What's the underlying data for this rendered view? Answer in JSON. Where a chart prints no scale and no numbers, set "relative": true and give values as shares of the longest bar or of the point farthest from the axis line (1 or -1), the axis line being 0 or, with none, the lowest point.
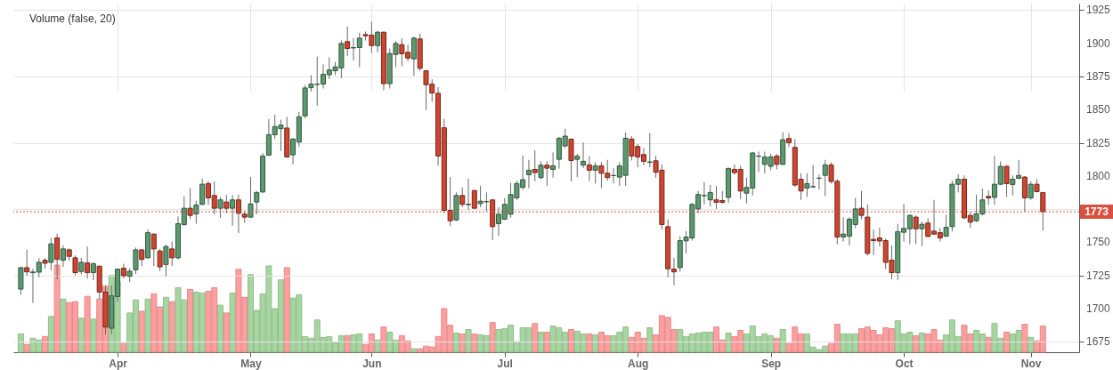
{
  "chart_data": [
    {
      "type": "candlestick",
      "tick_labels": "y",
      "categories": [
        null,
        null,
        null,
        null,
        null,
        null,
        null,
        null,
        null,
        null,
        null,
        null,
        null,
        null,
        null,
        null,
        null,
        null,
        null,
        null,
        null,
        null,
        null,
        null,
        null,
        null,
        null,
        null,
        null,
        null,
        null,
        null,
        null,
        null,
        null,
        null,
        null,
        null,
        null,
        null,
        null,
        null,
        null,
        null,
        null,
        null,
        null,
        null,
        null,
        null,
        null,
        null,
        null,
        null,
        null,
        null,
        null,
        null,
        null,
        null,
        null,
        null,
        null,
        null,
        null,
        null,
        null,
        null,
        null,
        null,
        null,
        null,
        null,
        null,
        null,
        null,
        null,
        null,
        null,
        null,
        null,
        null,
        null,
        null,
        null,
        null,
        null,
        null,
        null,
        null,
        null,
        null,
        null,
        null,
        null,
        null,
        null,
        null,
        null,
        null,
        null,
        null,
        null,
        null,
        null,
        null,
        null,
        null,
        null,
        null,
        null,
        null,
        null,
        null,
        null,
        null,
        null,
        null,
        null,
        null,
        null,
        null,
        null,
        null,
        null,
        null,
        null,
        null,
        null,
        null,
        null,
        null,
        null,
        null,
        null,
        null,
        null,
        null,
        null,
        null,
        null,
        null,
        null,
        null,
        null,
        null,
        null,
        null,
        null,
        null,
        null,
        null,
        null,
        null,
        null,
        null,
        null,
        null,
        null,
        null,
        null,
        null,
        null,
        null,
        null,
        null,
        null,
        null,
        null,
        null
      ],
      "ohlc": [
        [
          1714.6,
          1731,
          1710.2,
          1730.8
        ],
        [
          1730.8,
          1744.2,
          1724.7,
          1727.6
        ],
        [
          1727,
          1730,
          1704.1,
          1727.5
        ],
        [
          1727.4,
          1738,
          1723.6,
          1734.8
        ],
        [
          1736.4,
          1738,
          1730,
          1734.1
        ],
        [
          1734.8,
          1753.2,
          1728.8,
          1748.7
        ],
        [
          1753.2,
          1756.5,
          1722,
          1737
        ],
        [
          1736.4,
          1747.6,
          1731.4,
          1744.9
        ],
        [
          1744.2,
          1745.3,
          1735.9,
          1739.3
        ],
        [
          1738.2,
          1740,
          1725.2,
          1727
        ],
        [
          1727.9,
          1738.2,
          1725.9,
          1734.8
        ],
        [
          1734.4,
          1746.7,
          1722.5,
          1727
        ],
        [
          1727,
          1734.8,
          1721.4,
          1733.7
        ],
        [
          1731.9,
          1732,
          1707.3,
          1712.4
        ],
        [
          1712.4,
          1716.9,
          1680.4,
          1686
        ],
        [
          1685.1,
          1717.5,
          1680.4,
          1709.5
        ],
        [
          1709,
          1730,
          1705,
          1729.7
        ],
        [
          1730.3,
          1733.7,
          1722.5,
          1724.7
        ],
        [
          1724.3,
          1730.3,
          1719.8,
          1728.1
        ],
        [
          1729.2,
          1746,
          1725.9,
          1744.2
        ],
        [
          1744.2,
          1744.5,
          1731.9,
          1737
        ],
        [
          1738.2,
          1759.5,
          1737.7,
          1757.2
        ],
        [
          1756.1,
          1756.5,
          1731.9,
          1744.9
        ],
        [
          1743.3,
          1744.9,
          1728.1,
          1731.4
        ],
        [
          1733.2,
          1748.3,
          1724.3,
          1746.7
        ],
        [
          1744.9,
          1750.5,
          1732.1,
          1738.2
        ],
        [
          1738.2,
          1769.5,
          1737,
          1764
        ],
        [
          1763.2,
          1784.5,
          1762.8,
          1775.6
        ],
        [
          1775.6,
          1790.8,
          1767.7,
          1770.2
        ],
        [
          1771.3,
          1781.2,
          1763.9,
          1778
        ],
        [
          1778.5,
          1797.9,
          1778,
          1793.7
        ],
        [
          1794.2,
          1795.9,
          1778,
          1783.4
        ],
        [
          1785.2,
          1795.9,
          1770.7,
          1775.6
        ],
        [
          1775.6,
          1784.1,
          1768.4,
          1781.9
        ],
        [
          1780.3,
          1785.7,
          1771.8,
          1775.6
        ],
        [
          1775.6,
          1785.7,
          1762.4,
          1781.9
        ],
        [
          1781.9,
          1785.9,
          1756.8,
          1771.8
        ],
        [
          1771.1,
          1773.6,
          1764.6,
          1768.9
        ],
        [
          1768.9,
          1799.1,
          1768.4,
          1778.9
        ],
        [
          1780.3,
          1788.6,
          1771.1,
          1787.5
        ],
        [
          1787.9,
          1817.2,
          1787,
          1815
        ],
        [
          1815.7,
          1843,
          1815,
          1831.1
        ],
        [
          1831.1,
          1846.1,
          1827.8,
          1837.2
        ],
        [
          1835.6,
          1842.3,
          1818.8,
          1838.3
        ],
        [
          1836.1,
          1844.6,
          1813.7,
          1814.3
        ],
        [
          1815.9,
          1828.5,
          1808.7,
          1827.8
        ],
        [
          1825.5,
          1848.4,
          1821.8,
          1844.6
        ],
        [
          1845.3,
          1868.5,
          1843.5,
          1866.3
        ],
        [
          1866.5,
          1875.9,
          1863.6,
          1869.2
        ],
        [
          1869,
          1890,
          1852.9,
          1869.2
        ],
        [
          1869.2,
          1884.2,
          1865.9,
          1876.6
        ],
        [
          1876.3,
          1889.4,
          1873,
          1879.9
        ],
        [
          1879.3,
          1886,
          1875.9,
          1882.2
        ],
        [
          1881.5,
          1902.1,
          1873.7,
          1899.9
        ],
        [
          1901.3,
          1912.5,
          1890.5,
          1896.1
        ],
        [
          1896.5,
          1903.9,
          1887.1,
          1896.8
        ],
        [
          1896.8,
          1908,
          1882,
          1903.9
        ],
        [
          1906.6,
          1908.9,
          1902.1,
          1905.7
        ],
        [
          1906.2,
          1916.3,
          1892.7,
          1898.3
        ],
        [
          1898.3,
          1909.5,
          1893.2,
          1908.4
        ],
        [
          1908.4,
          1908.9,
          1864.7,
          1869.6
        ],
        [
          1869.6,
          1896.1,
          1865.9,
          1892.3
        ],
        [
          1891.6,
          1901.7,
          1882,
          1899.9
        ],
        [
          1899,
          1903.9,
          1882.7,
          1892.1
        ],
        [
          1893.2,
          1899,
          1886.5,
          1888.9
        ],
        [
          1888.3,
          1905.1,
          1875.5,
          1903.9
        ],
        [
          1903.3,
          1907.3,
          1879.3,
          1881.1
        ],
        [
          1879.3,
          1879.4,
          1849.7,
          1868.8
        ],
        [
          1869.2,
          1873,
          1855.8,
          1862.5
        ],
        [
          1862.3,
          1867,
          1807.6,
          1815
        ],
        [
          1836.3,
          1843,
          1771.8,
          1774
        ],
        [
          1774,
          1799.1,
          1762.1,
          1766.2
        ],
        [
          1766.8,
          1787.5,
          1766,
          1785.2
        ],
        [
          1785.2,
          1791.3,
          1776.3,
          1778.5
        ],
        [
          1778.3,
          1797.9,
          1774.5,
          1778.6
        ],
        [
          1789,
          1789.2,
          1775.1,
          1775.6
        ],
        [
          1779.1,
          1792.4,
          1776.3,
          1780.9
        ],
        [
          1780.5,
          1787.5,
          1773.4,
          1780.7
        ],
        [
          1781.9,
          1782,
          1751.6,
          1761.7
        ],
        [
          1764,
          1776.3,
          1754.5,
          1771.1
        ],
        [
          1767.3,
          1783.4,
          1766.8,
          1778.5
        ],
        [
          1771.1,
          1794.8,
          1768.4,
          1785.9
        ],
        [
          1783.4,
          1796.4,
          1781.9,
          1794.2
        ],
        [
          1791.3,
          1815.4,
          1789.7,
          1797.2
        ],
        [
          1800.9,
          1812.1,
          1790.6,
          1804.3
        ],
        [
          1804.9,
          1819.3,
          1795.9,
          1802.5
        ],
        [
          1798.7,
          1811,
          1797.5,
          1808.1
        ],
        [
          1808.1,
          1811,
          1792.4,
          1805.8
        ],
        [
          1804.9,
          1817.7,
          1798.7,
          1807.6
        ],
        [
          1812.5,
          1829.3,
          1805.4,
          1828.4
        ],
        [
          1822.6,
          1835.6,
          1821,
          1830
        ],
        [
          1827.8,
          1828,
          1795.9,
          1811.6
        ],
        [
          1812.5,
          1816.6,
          1799,
          1814.8
        ],
        [
          1808.1,
          1825.3,
          1805.8,
          1811
        ],
        [
          1808.3,
          1814.8,
          1796,
          1804.3
        ],
        [
          1804.3,
          1810.3,
          1794.2,
          1807.6
        ],
        [
          1807.6,
          1810.3,
          1790.8,
          1802
        ],
        [
          1802,
          1812.1,
          1796.4,
          1798.7
        ],
        [
          1800.2,
          1805.8,
          1794.2,
          1800.3
        ],
        [
          1799.1,
          1810.3,
          1792.4,
          1807.6
        ],
        [
          1800.4,
          1832.7,
          1792.4,
          1828.4
        ],
        [
          1827.8,
          1830,
          1811.6,
          1815
        ],
        [
          1822.2,
          1824,
          1806.5,
          1814.3
        ],
        [
          1816.1,
          1821.1,
          1808.1,
          1811
        ],
        [
          1810.3,
          1832.3,
          1806.5,
          1810.5
        ],
        [
          1811.4,
          1815.4,
          1798.7,
          1802.7
        ],
        [
          1804.3,
          1808.7,
          1759.5,
          1763.3
        ],
        [
          1761.7,
          1767.3,
          1723.6,
          1729.9
        ],
        [
          1729.7,
          1738.2,
          1717.6,
          1727.6
        ],
        [
          1730.8,
          1754.5,
          1727.6,
          1751.2
        ],
        [
          1751,
          1758.3,
          1741.5,
          1753.9
        ],
        [
          1753.2,
          1779.6,
          1751.2,
          1778.5
        ],
        [
          1775.1,
          1788.6,
          1771.8,
          1785.9
        ],
        [
          1785.1,
          1795.3,
          1778.5,
          1785.2
        ],
        [
          1781.9,
          1793.1,
          1776.9,
          1787.5
        ],
        [
          1781.9,
          1792.4,
          1775.1,
          1780.1
        ],
        [
          1781.4,
          1788.6,
          1779,
          1780.1
        ],
        [
          1783.8,
          1806.3,
          1779.6,
          1805.6
        ],
        [
          1804.9,
          1808.7,
          1800.9,
          1802.5
        ],
        [
          1804.9,
          1807.6,
          1782.5,
          1788.6
        ],
        [
          1787,
          1798.7,
          1779.2,
          1791.3
        ],
        [
          1790.8,
          1818.1,
          1785.2,
          1817.3
        ],
        [
          1814.8,
          1818.3,
          1803.1,
          1815
        ],
        [
          1808.7,
          1818.3,
          1802,
          1814.3
        ],
        [
          1807.2,
          1816.6,
          1804.3,
          1814.3
        ],
        [
          1815,
          1816.6,
          1804.9,
          1808.7
        ],
        [
          1808.7,
          1832.9,
          1808,
          1827.3
        ],
        [
          1828.2,
          1832.3,
          1821.7,
          1825.1
        ],
        [
          1821.5,
          1827.8,
          1791.9,
          1793.1
        ],
        [
          1797.5,
          1802,
          1781.9,
          1788.6
        ],
        [
          1790.8,
          1802,
          1784.1,
          1794.2
        ],
        [
          1791.8,
          1808.1,
          1790.8,
          1791.9
        ],
        [
          1798.2,
          1800.9,
          1789.7,
          1798.3
        ],
        [
          1800.4,
          1812.1,
          1784.7,
          1808.3
        ],
        [
          1808.3,
          1810.3,
          1794.2,
          1795.8
        ],
        [
          1795.9,
          1797.5,
          1748.3,
          1753.9
        ],
        [
          1753.9,
          1768.9,
          1750.5,
          1756.1
        ],
        [
          1754.5,
          1768.9,
          1747.6,
          1767.3
        ],
        [
          1763.3,
          1783.4,
          1760.6,
          1775.1
        ],
        [
          1775.6,
          1788.6,
          1767.3,
          1770.2
        ],
        [
          1768.9,
          1778.5,
          1740,
          1741.5
        ],
        [
          1752.1,
          1759.5,
          1740.3,
          1751.2
        ],
        [
          1753.2,
          1761,
          1746.7,
          1750.9
        ],
        [
          1751.2,
          1752.8,
          1729.7,
          1734.8
        ],
        [
          1736.4,
          1747.6,
          1722,
          1727
        ],
        [
          1727,
          1763.9,
          1721.4,
          1757.9
        ],
        [
          1757.5,
          1778.9,
          1750.5,
          1760.4
        ],
        [
          1760.1,
          1770.7,
          1748.5,
          1770.2
        ],
        [
          1768.9,
          1770.2,
          1748.5,
          1760.1
        ],
        [
          1760.1,
          1765.5,
          1747.2,
          1763.5
        ],
        [
          1764.4,
          1768,
          1753.9,
          1754.3
        ],
        [
          1758.3,
          1781.9,
          1755.6,
          1756.1
        ],
        [
          1757.2,
          1760.6,
          1750.5,
          1753.2
        ],
        [
          1754.5,
          1770.7,
          1753.9,
          1761.2
        ],
        [
          1761.7,
          1796.4,
          1758.3,
          1793.7
        ],
        [
          1793.7,
          1801.3,
          1787.5,
          1797.5
        ],
        [
          1797.5,
          1800.4,
          1767.3,
          1768.4
        ],
        [
          1770.2,
          1772.7,
          1760.6,
          1765.1
        ],
        [
          1766.2,
          1785.9,
          1765.1,
          1771.3
        ],
        [
          1771.3,
          1790.4,
          1770,
          1781.9
        ],
        [
          1784.5,
          1788.9,
          1778,
          1783.4
        ],
        [
          1783.8,
          1815,
          1778.3,
          1793.7
        ],
        [
          1793.7,
          1811,
          1793,
          1807.2
        ],
        [
          1807.2,
          1808.1,
          1784.1,
          1794.2
        ],
        [
          1793.5,
          1800.4,
          1785.2,
          1797.5
        ],
        [
          1798.2,
          1812.1,
          1797.5,
          1800.4
        ],
        [
          1799.1,
          1799.8,
          1772.9,
          1783.4
        ],
        [
          1783.4,
          1795.9,
          1781.9,
          1793.7
        ],
        [
          1793.7,
          1797.5,
          1787.5,
          1788.1
        ],
        [
          1787.5,
          1787.5,
          1758.8,
          1773
        ]
      ],
      "colors": [
        "#5b9a6f",
        "#d0452f",
        "#5b9a6f",
        "#5b9a6f",
        "#d0452f",
        "#5b9a6f",
        "#d0452f",
        "#5b9a6f",
        "#d0452f",
        "#d0452f",
        "#5b9a6f",
        "#d0452f",
        "#5b9a6f",
        "#d0452f",
        "#d0452f",
        "#5b9a6f",
        "#5b9a6f",
        "#d0452f",
        "#5b9a6f",
        "#5b9a6f",
        "#d0452f",
        "#5b9a6f",
        "#d0452f",
        "#d0452f",
        "#5b9a6f",
        "#d0452f",
        "#5b9a6f",
        "#5b9a6f",
        "#d0452f",
        "#5b9a6f",
        "#5b9a6f",
        "#d0452f",
        "#d0452f",
        "#5b9a6f",
        "#d0452f",
        "#5b9a6f",
        "#d0452f",
        "#d0452f",
        "#5b9a6f",
        "#5b9a6f",
        "#5b9a6f",
        "#5b9a6f",
        "#5b9a6f",
        "#5b9a6f",
        "#d0452f",
        "#5b9a6f",
        "#5b9a6f",
        "#5b9a6f",
        "#5b9a6f",
        "#5b9a6f",
        "#5b9a6f",
        "#5b9a6f",
        "#5b9a6f",
        "#5b9a6f",
        "#d0452f",
        "#5b9a6f",
        "#5b9a6f",
        "#d0452f",
        "#d0452f",
        "#5b9a6f",
        "#d0452f",
        "#5b9a6f",
        "#5b9a6f",
        "#d0452f",
        "#d0452f",
        "#5b9a6f",
        "#d0452f",
        "#d0452f",
        "#d0452f",
        "#d0452f",
        "#d0452f",
        "#d0452f",
        "#5b9a6f",
        "#d0452f",
        "#5b9a6f",
        "#d0452f",
        "#5b9a6f",
        "#5b9a6f",
        "#d0452f",
        "#5b9a6f",
        "#5b9a6f",
        "#5b9a6f",
        "#5b9a6f",
        "#5b9a6f",
        "#5b9a6f",
        "#d0452f",
        "#5b9a6f",
        "#d0452f",
        "#5b9a6f",
        "#5b9a6f",
        "#5b9a6f",
        "#d0452f",
        "#5b9a6f",
        "#5b9a6f",
        "#d0452f",
        "#5b9a6f",
        "#d0452f",
        "#d0452f",
        "#5b9a6f",
        "#5b9a6f",
        "#5b9a6f",
        "#d0452f",
        "#d0452f",
        "#d0452f",
        "#5b9a6f",
        "#d0452f",
        "#d0452f",
        "#d0452f",
        "#d0452f",
        "#5b9a6f",
        "#5b9a6f",
        "#5b9a6f",
        "#5b9a6f",
        "#5b9a6f",
        "#5b9a6f",
        "#d0452f",
        "#d0452f",
        "#5b9a6f",
        "#d0452f",
        "#d0452f",
        "#5b9a6f",
        "#5b9a6f",
        "#5b9a6f",
        "#5b9a6f",
        "#5b9a6f",
        "#d0452f",
        "#5b9a6f",
        "#d0452f",
        "#d0452f",
        "#d0452f",
        "#5b9a6f",
        "#5b9a6f",
        "#5b9a6f",
        "#5b9a6f",
        "#d0452f",
        "#d0452f",
        "#5b9a6f",
        "#5b9a6f",
        "#5b9a6f",
        "#d0452f",
        "#d0452f",
        "#d0452f",
        "#d0452f",
        "#d0452f",
        "#d0452f",
        "#5b9a6f",
        "#5b9a6f",
        "#5b9a6f",
        "#d0452f",
        "#5b9a6f",
        "#d0452f",
        "#d0452f",
        "#d0452f",
        "#5b9a6f",
        "#5b9a6f",
        "#5b9a6f",
        "#d0452f",
        "#d0452f",
        "#5b9a6f",
        "#5b9a6f",
        "#d0452f",
        "#5b9a6f",
        "#5b9a6f",
        "#d0452f",
        "#5b9a6f",
        "#5b9a6f",
        "#d0452f",
        "#5b9a6f",
        "#d0452f",
        "#d0452f"
      ],
      "ylim": [
        1667,
        1930
      ],
      "yticks": [
        1675,
        1700,
        1725,
        1750,
        {
          "value": 1775,
          "label": null
        },
        1800,
        1825,
        1850,
        1875,
        1900,
        1925
      ],
      "grid": "y",
      "ref_lines": [
        {
          "axis": "y",
          "value": 1773,
          "label": "1773",
          "color": "#d9503f",
          "line_style": "dotted"
        }
      ]
    },
    {
      "type": "bar",
      "title": "Volume (false, 20)",
      "relative": true,
      "tick_labels": "x",
      "grid": "x",
      "categories": [
        null,
        null,
        null,
        null,
        null,
        null,
        null,
        null,
        null,
        null,
        null,
        null,
        null,
        null,
        null,
        null,
        "Apr",
        null,
        null,
        null,
        null,
        null,
        null,
        null,
        null,
        null,
        null,
        null,
        null,
        null,
        null,
        null,
        null,
        null,
        null,
        null,
        null,
        null,
        "May",
        null,
        null,
        null,
        null,
        null,
        null,
        null,
        null,
        null,
        null,
        null,
        null,
        null,
        null,
        null,
        null,
        null,
        null,
        null,
        "Jun",
        null,
        null,
        null,
        null,
        null,
        null,
        null,
        null,
        null,
        null,
        null,
        null,
        null,
        null,
        null,
        null,
        null,
        null,
        null,
        null,
        null,
        "Jul",
        null,
        null,
        null,
        null,
        null,
        null,
        null,
        null,
        null,
        null,
        null,
        null,
        null,
        null,
        null,
        null,
        null,
        null,
        null,
        null,
        null,
        "Aug",
        null,
        null,
        null,
        null,
        null,
        null,
        null,
        null,
        null,
        null,
        null,
        null,
        null,
        null,
        null,
        null,
        null,
        null,
        null,
        null,
        null,
        "Sep",
        null,
        null,
        null,
        null,
        null,
        null,
        null,
        null,
        null,
        null,
        null,
        null,
        null,
        null,
        null,
        null,
        null,
        null,
        null,
        null,
        null,
        "Oct",
        null,
        null,
        null,
        null,
        null,
        null,
        null,
        null,
        null,
        null,
        null,
        null,
        null,
        null,
        null,
        null,
        null,
        null,
        null,
        null,
        "Nov",
        null,
        null
      ],
      "values": [
        0.21,
        0.09,
        0.16,
        0.14,
        0.18,
        0.41,
        1,
        0.61,
        0.57,
        0.58,
        0.39,
        0.64,
        0.38,
        0.61,
        0.76,
        0.88,
        0.81,
        0.1,
        0.45,
        0.6,
        0.47,
        0.61,
        0.67,
        0.52,
        0.63,
        0.58,
        0.74,
        0.6,
        0.72,
        0.69,
        0.68,
        0.7,
        0.74,
        0.54,
        0.45,
        0.68,
        0.95,
        0.63,
        0.89,
        0.48,
        0.67,
        0.99,
        0.5,
        0.83,
        0.97,
        0.62,
        0.66,
        0.18,
        0.16,
        0.37,
        0.17,
        0.18,
        0.11,
        0.19,
        0.19,
        0.2,
        0.21,
        0.09,
        0.21,
        0.14,
        0.29,
        0.23,
        0.14,
        0.19,
        0.13,
        0.04,
        0.04,
        0.07,
        0.06,
        0.18,
        0.5,
        0.31,
        0.22,
        0.21,
        0.26,
        0.21,
        0.2,
        0.19,
        0.34,
        0.26,
        0.27,
        0.31,
        0.12,
        0.28,
        0.28,
        0.33,
        0.23,
        0.23,
        0.3,
        0.28,
        0.23,
        0.26,
        0.24,
        0.21,
        0.21,
        0.2,
        0.23,
        0.19,
        0.19,
        0.23,
        0.29,
        0.17,
        0.23,
        0.16,
        0.28,
        0.2,
        0.42,
        0.4,
        0.26,
        0.26,
        0.18,
        0.21,
        0.22,
        0.23,
        0.23,
        0.29,
        0.14,
        0.22,
        0.18,
        0.25,
        0.21,
        0.3,
        0.18,
        0.21,
        0.19,
        0.16,
        0.26,
        0.1,
        0.29,
        0.21,
        0.21,
        0.06,
        0.03,
        0.07,
        0.1,
        0.32,
        0.21,
        0.21,
        0.21,
        0.27,
        0.29,
        0.25,
        0.2,
        0.28,
        0.27,
        0.36,
        0.21,
        0.23,
        0.19,
        0.22,
        0.21,
        0.26,
        0.14,
        0.2,
        0.37,
        0.18,
        0.31,
        0.21,
        0.25,
        0.21,
        0.17,
        0.33,
        0.16,
        0.23,
        0.21,
        0.25,
        0.32,
        0.17,
        0.13,
        0.3
      ],
      "colors": [
        "#a6d6a0",
        "#ff9e9e",
        "#a6d6a0",
        "#a6d6a0",
        "#ff9e9e",
        "#a6d6a0",
        "#ff9e9e",
        "#a6d6a0",
        "#ff9e9e",
        "#ff9e9e",
        "#a6d6a0",
        "#ff9e9e",
        "#a6d6a0",
        "#ff9e9e",
        "#ff9e9e",
        "#a6d6a0",
        "#a6d6a0",
        "#ff9e9e",
        "#a6d6a0",
        "#a6d6a0",
        "#ff9e9e",
        "#a6d6a0",
        "#ff9e9e",
        "#ff9e9e",
        "#a6d6a0",
        "#ff9e9e",
        "#a6d6a0",
        "#a6d6a0",
        "#ff9e9e",
        "#a6d6a0",
        "#a6d6a0",
        "#ff9e9e",
        "#ff9e9e",
        "#a6d6a0",
        "#ff9e9e",
        "#a6d6a0",
        "#ff9e9e",
        "#ff9e9e",
        "#a6d6a0",
        "#a6d6a0",
        "#a6d6a0",
        "#a6d6a0",
        "#a6d6a0",
        "#a6d6a0",
        "#ff9e9e",
        "#a6d6a0",
        "#a6d6a0",
        "#a6d6a0",
        "#a6d6a0",
        "#a6d6a0",
        "#a6d6a0",
        "#a6d6a0",
        "#a6d6a0",
        "#a6d6a0",
        "#ff9e9e",
        "#a6d6a0",
        "#a6d6a0",
        "#ff9e9e",
        "#ff9e9e",
        "#a6d6a0",
        "#ff9e9e",
        "#a6d6a0",
        "#a6d6a0",
        "#ff9e9e",
        "#ff9e9e",
        "#a6d6a0",
        "#ff9e9e",
        "#ff9e9e",
        "#ff9e9e",
        "#ff9e9e",
        "#ff9e9e",
        "#ff9e9e",
        "#a6d6a0",
        "#ff9e9e",
        "#a6d6a0",
        "#ff9e9e",
        "#a6d6a0",
        "#a6d6a0",
        "#ff9e9e",
        "#a6d6a0",
        "#a6d6a0",
        "#a6d6a0",
        "#a6d6a0",
        "#a6d6a0",
        "#a6d6a0",
        "#ff9e9e",
        "#a6d6a0",
        "#ff9e9e",
        "#a6d6a0",
        "#a6d6a0",
        "#a6d6a0",
        "#ff9e9e",
        "#a6d6a0",
        "#a6d6a0",
        "#ff9e9e",
        "#a6d6a0",
        "#ff9e9e",
        "#ff9e9e",
        "#a6d6a0",
        "#a6d6a0",
        "#a6d6a0",
        "#ff9e9e",
        "#ff9e9e",
        "#ff9e9e",
        "#a6d6a0",
        "#ff9e9e",
        "#ff9e9e",
        "#ff9e9e",
        "#ff9e9e",
        "#a6d6a0",
        "#a6d6a0",
        "#a6d6a0",
        "#a6d6a0",
        "#a6d6a0",
        "#a6d6a0",
        "#ff9e9e",
        "#ff9e9e",
        "#a6d6a0",
        "#ff9e9e",
        "#ff9e9e",
        "#a6d6a0",
        "#a6d6a0",
        "#a6d6a0",
        "#a6d6a0",
        "#a6d6a0",
        "#ff9e9e",
        "#a6d6a0",
        "#ff9e9e",
        "#ff9e9e",
        "#ff9e9e",
        "#a6d6a0",
        "#a6d6a0",
        "#a6d6a0",
        "#a6d6a0",
        "#ff9e9e",
        "#ff9e9e",
        "#a6d6a0",
        "#a6d6a0",
        "#a6d6a0",
        "#ff9e9e",
        "#ff9e9e",
        "#ff9e9e",
        "#ff9e9e",
        "#ff9e9e",
        "#ff9e9e",
        "#a6d6a0",
        "#a6d6a0",
        "#a6d6a0",
        "#ff9e9e",
        "#a6d6a0",
        "#ff9e9e",
        "#ff9e9e",
        "#ff9e9e",
        "#a6d6a0",
        "#a6d6a0",
        "#a6d6a0",
        "#ff9e9e",
        "#ff9e9e",
        "#a6d6a0",
        "#a6d6a0",
        "#ff9e9e",
        "#a6d6a0",
        "#a6d6a0",
        "#ff9e9e",
        "#a6d6a0",
        "#a6d6a0",
        "#ff9e9e",
        "#a6d6a0",
        "#ff9e9e",
        "#ff9e9e"
      ]
    }
  ]
}
